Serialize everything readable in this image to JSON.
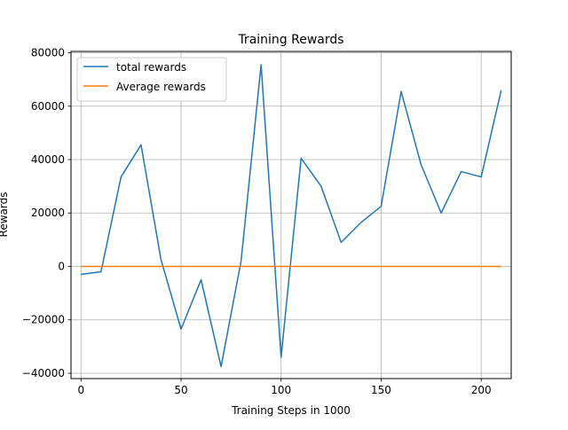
{
  "chart_data": {
    "type": "line",
    "title": "Training Rewards",
    "xlabel": "Training Steps in 1000",
    "ylabel": "Rewards",
    "xlim": [
      -5,
      215
    ],
    "ylim": [
      -42000,
      80500
    ],
    "x_ticks": [
      0,
      50,
      100,
      150,
      200
    ],
    "y_ticks": [
      -40000,
      -20000,
      0,
      20000,
      40000,
      60000,
      80000
    ],
    "grid": true,
    "legend_position": "top-left",
    "series": [
      {
        "name": "total rewards",
        "color": "#1f77b4",
        "x": [
          0,
          10,
          20,
          30,
          40,
          50,
          60,
          70,
          80,
          90,
          100,
          110,
          120,
          130,
          140,
          150,
          160,
          170,
          180,
          190,
          200,
          210
        ],
        "y": [
          -3000,
          -2000,
          33500,
          45500,
          2500,
          -23500,
          -5000,
          -37500,
          2000,
          75500,
          -34000,
          40500,
          30000,
          9000,
          16500,
          22500,
          65500,
          38000,
          20000,
          35500,
          33500,
          66000
        ]
      },
      {
        "name": "Average rewards",
        "color": "#ff7f0e",
        "x": [
          0,
          210
        ],
        "y": [
          0,
          0
        ]
      }
    ]
  }
}
